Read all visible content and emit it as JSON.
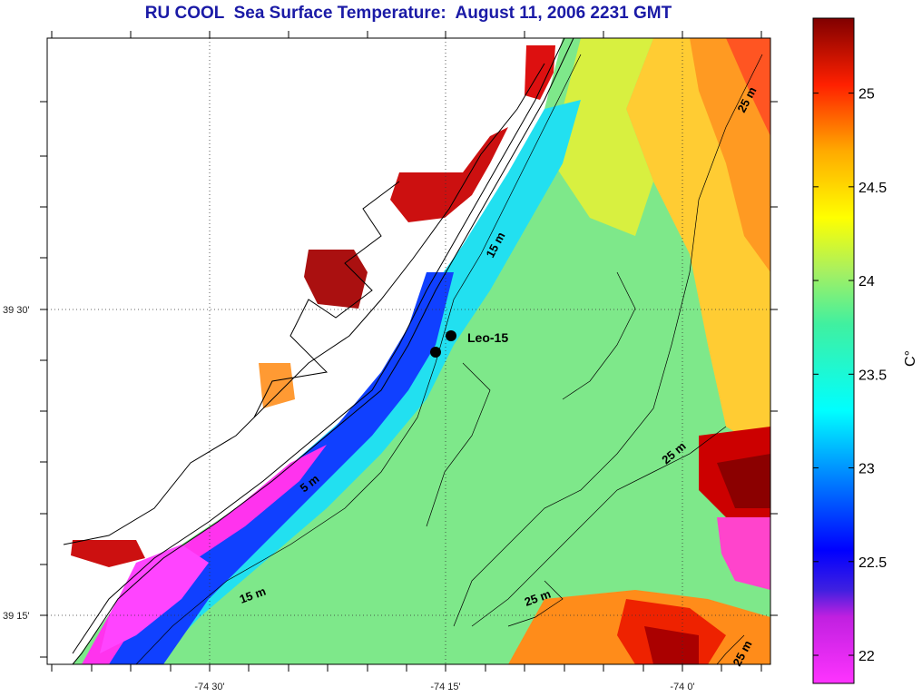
{
  "title": "RU COOL  Sea Surface Temperature:  August 11, 2006 2231 GMT",
  "map": {
    "lat_ticks": [
      "39 30'",
      "39 15'"
    ],
    "lon_ticks": [
      "-74 30'",
      "-74 15'",
      "-74 0'"
    ],
    "lon_range": [
      -74.45,
      -73.93
    ],
    "lat_range": [
      39.2,
      39.62
    ],
    "contours": [
      {
        "label": "25 m"
      },
      {
        "label": "15 m"
      },
      {
        "label": "25 m"
      },
      {
        "label": "5 m"
      },
      {
        "label": "15 m"
      },
      {
        "label": "25 m"
      },
      {
        "label": "25 m"
      }
    ],
    "station": {
      "label": "Leo-15",
      "lon": -74.25,
      "lat": 39.467
    }
  },
  "colorbar": {
    "unit_label": "C°",
    "ticks": [
      "25",
      "24.5",
      "24",
      "23.5",
      "23",
      "22.5",
      "22"
    ],
    "range": [
      21.85,
      25.4
    ],
    "colors": [
      "#ff33ff",
      "#8a2be2",
      "#0000ff",
      "#00ffff",
      "#00ff88",
      "#ffff00",
      "#ff9900",
      "#ff0000",
      "#8b0000"
    ]
  }
}
